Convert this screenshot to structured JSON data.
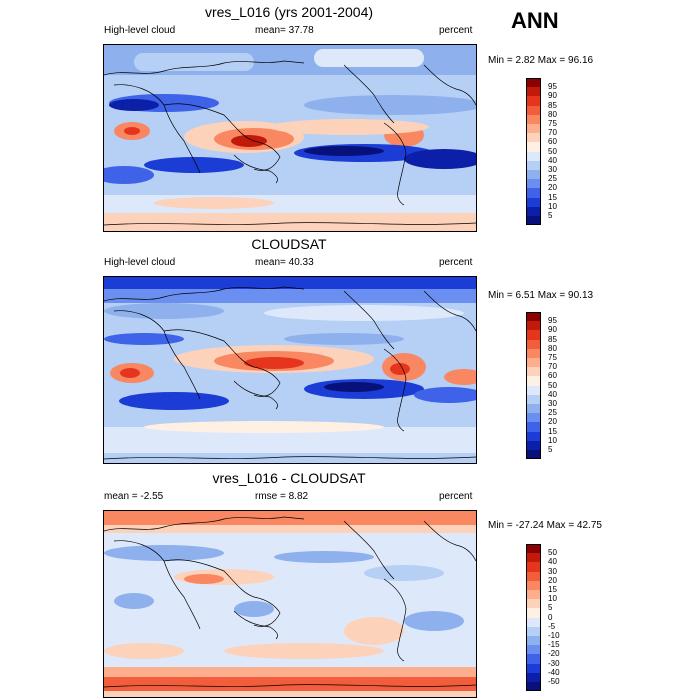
{
  "header": {
    "season": "ANN"
  },
  "panels": [
    {
      "title": "vres_L016 (yrs 2001-2004)",
      "left_label": "High-level cloud",
      "center_label": "mean=  37.78",
      "right_label": "percent",
      "minmax": "Min =   2.82 Max =  96.16",
      "colorbar": {
        "labels": [
          "95",
          "90",
          "85",
          "80",
          "75",
          "70",
          "60",
          "50",
          "40",
          "30",
          "25",
          "20",
          "15",
          "10",
          "5"
        ],
        "colors": [
          "#8b0000",
          "#c21a0a",
          "#e5361d",
          "#f25e3c",
          "#f88762",
          "#fcae8d",
          "#fdd2bb",
          "#fff0e4",
          "#dde9fb",
          "#b6cff5",
          "#8eb1ee",
          "#6b8ff0",
          "#3e63e8",
          "#1b3dd6",
          "#0c1fa8",
          "#08107a"
        ]
      }
    },
    {
      "title": "CLOUDSAT",
      "left_label": "High-level cloud",
      "center_label": "mean=  40.33",
      "right_label": "percent",
      "minmax": "Min =   6.51 Max =  90.13",
      "colorbar": {
        "labels": [
          "95",
          "90",
          "85",
          "80",
          "75",
          "70",
          "60",
          "50",
          "40",
          "30",
          "25",
          "20",
          "15",
          "10",
          "5"
        ],
        "colors": [
          "#8b0000",
          "#c21a0a",
          "#e5361d",
          "#f25e3c",
          "#f88762",
          "#fcae8d",
          "#fdd2bb",
          "#fff0e4",
          "#dde9fb",
          "#b6cff5",
          "#8eb1ee",
          "#6b8ff0",
          "#3e63e8",
          "#1b3dd6",
          "#0c1fa8",
          "#08107a"
        ]
      }
    },
    {
      "title": "vres_L016 - CLOUDSAT",
      "left_label": "mean =  -2.55",
      "center_label": "rmse =   8.82",
      "right_label": "percent",
      "minmax": "Min = -27.24 Max =  42.75",
      "colorbar": {
        "labels": [
          "50",
          "40",
          "30",
          "20",
          "15",
          "10",
          "5",
          "0",
          "-5",
          "-10",
          "-15",
          "-20",
          "-30",
          "-40",
          "-50"
        ],
        "colors": [
          "#8b0000",
          "#c21a0a",
          "#e5361d",
          "#f25e3c",
          "#f88762",
          "#fcae8d",
          "#fdd2bb",
          "#fff0e4",
          "#dde9fb",
          "#b6cff5",
          "#8eb1ee",
          "#6b8ff0",
          "#3e63e8",
          "#1b3dd6",
          "#0c1fa8",
          "#08107a"
        ]
      }
    }
  ]
}
